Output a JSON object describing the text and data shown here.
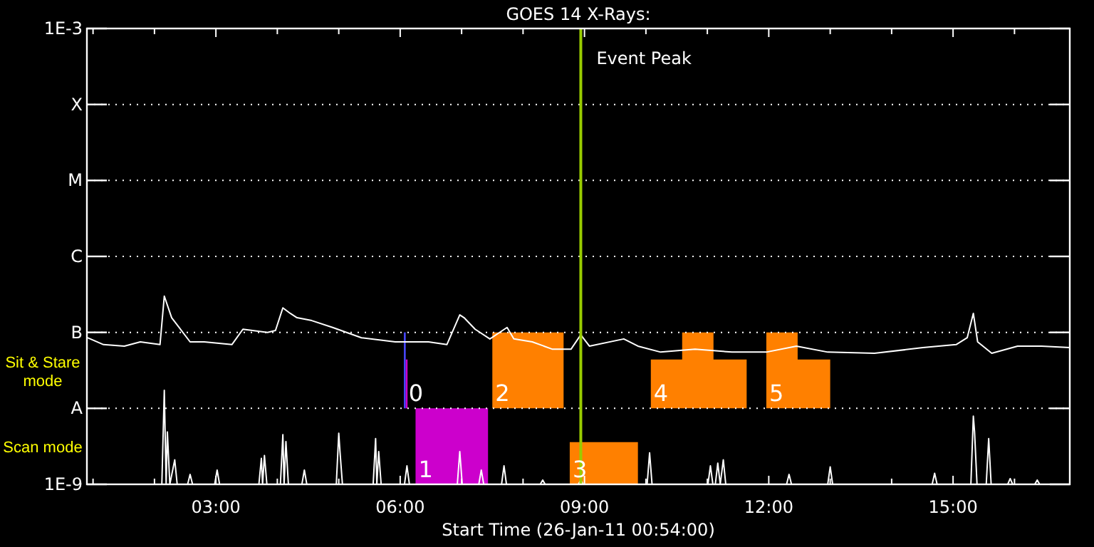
{
  "chart_data": {
    "type": "line",
    "title": "GOES 14 X-Rays:",
    "xlabel": "Start Time (26-Jan-11 00:54:00)",
    "log": "y",
    "grid": "y",
    "xlim": [
      0.9,
      16.9
    ],
    "xticks": [
      {
        "value": 1,
        "label": null
      },
      {
        "value": 2,
        "label": null
      },
      {
        "value": 3,
        "label": "03:00"
      },
      {
        "value": 4,
        "label": null
      },
      {
        "value": 5,
        "label": null
      },
      {
        "value": 6,
        "label": "06:00"
      },
      {
        "value": 7,
        "label": null
      },
      {
        "value": 8,
        "label": null
      },
      {
        "value": 9,
        "label": "09:00"
      },
      {
        "value": 10,
        "label": null
      },
      {
        "value": 11,
        "label": null
      },
      {
        "value": 12,
        "label": "12:00"
      },
      {
        "value": 13,
        "label": null
      },
      {
        "value": 14,
        "label": null
      },
      {
        "value": 15,
        "label": "15:00"
      },
      {
        "value": 16,
        "label": null
      }
    ],
    "ylim": [
      1e-09,
      0.001
    ],
    "yticks": [
      {
        "value": 1e-09,
        "label": "1E-9"
      },
      {
        "value": 1e-08,
        "label": "A"
      },
      {
        "value": 1e-07,
        "label": "B"
      },
      {
        "value": 1e-06,
        "label": "C"
      },
      {
        "value": 1e-05,
        "label": "M"
      },
      {
        "value": 0.0001,
        "label": "X"
      },
      {
        "value": 0.001,
        "label": "1E-3"
      }
    ],
    "series": [
      {
        "type": "area",
        "color": "#4848ff",
        "x": [
          6.06,
          6.09
        ],
        "values": [
          null,
          null
        ],
        "lower": [
          1e-08,
          1e-08
        ],
        "upper": [
          1e-07,
          1e-07
        ]
      },
      {
        "type": "area",
        "color": "#cc00cc",
        "x": [
          6.09,
          6.12
        ],
        "values": [
          null,
          null
        ],
        "lower": [
          1e-08,
          1e-08
        ],
        "upper": [
          4.4e-08,
          4.4e-08
        ]
      },
      {
        "type": "area",
        "color": "#cc00cc",
        "x": [
          6.25,
          7.43
        ],
        "values": [
          null,
          null
        ],
        "lower": [
          1e-09,
          1e-09
        ],
        "upper": [
          1e-08,
          1e-08
        ]
      },
      {
        "type": "area",
        "color": "#ff8000",
        "x": [
          7.5,
          8.66
        ],
        "values": [
          null,
          null
        ],
        "lower": [
          1e-08,
          1e-08
        ],
        "upper": [
          1e-07,
          1e-07
        ]
      },
      {
        "type": "area",
        "color": "#ff8000",
        "x": [
          8.76,
          9.87
        ],
        "values": [
          null,
          null
        ],
        "lower": [
          1e-09,
          1e-09
        ],
        "upper": [
          3.6e-09,
          3.6e-09
        ]
      },
      {
        "type": "area",
        "color": "#ff8000",
        "x": [
          10.08,
          10.59,
          10.59,
          11.1,
          11.1,
          11.64
        ],
        "values": [
          null,
          null,
          null,
          null,
          null,
          null
        ],
        "lower": [
          1e-08,
          1e-08,
          1e-08,
          1e-08,
          1e-08,
          1e-08
        ],
        "upper": [
          4.4e-08,
          4.4e-08,
          1e-07,
          1e-07,
          4.4e-08,
          4.4e-08
        ]
      },
      {
        "type": "area",
        "color": "#ff8000",
        "x": [
          11.96,
          12.47,
          12.47,
          13.0
        ],
        "values": [
          null,
          null,
          null,
          null
        ],
        "lower": [
          1e-08,
          1e-08,
          1e-08,
          1e-08
        ],
        "upper": [
          1e-07,
          1e-07,
          4.4e-08,
          4.4e-08
        ]
      },
      {
        "color": "#ffffff",
        "x": [
          0.91,
          1.17,
          1.51,
          1.77,
          2.09,
          2.16,
          2.28,
          2.58,
          2.81,
          3.26,
          3.44,
          3.84,
          3.97,
          4.09,
          4.21,
          4.32,
          4.56,
          4.9,
          5.37,
          5.92,
          6.46,
          6.76,
          6.97,
          7.04,
          7.22,
          7.46,
          7.74,
          7.85,
          8.15,
          8.48,
          8.78,
          8.94,
          9.08,
          9.64,
          9.87,
          10.24,
          10.8,
          11.4,
          11.96,
          12.45,
          12.96,
          13.72,
          14.51,
          15.05,
          15.23,
          15.33,
          15.4,
          15.63,
          16.05,
          16.44,
          16.9
        ],
        "values": [
          8.5e-08,
          6.9e-08,
          6.6e-08,
          7.5e-08,
          6.9e-08,
          3e-07,
          1.56e-07,
          7.5e-08,
          7.5e-08,
          6.9e-08,
          1.1e-07,
          1e-07,
          1.06e-07,
          2.1e-07,
          1.78e-07,
          1.56e-07,
          1.43e-07,
          1.16e-07,
          8.5e-08,
          7.5e-08,
          7.5e-08,
          6.9e-08,
          1.7e-07,
          1.56e-07,
          1.1e-07,
          8.2e-08,
          1.16e-07,
          8.2e-08,
          7.5e-08,
          6e-08,
          6e-08,
          9.3e-08,
          6.6e-08,
          8.2e-08,
          6.6e-08,
          5.5e-08,
          6e-08,
          5.5e-08,
          5.5e-08,
          6.6e-08,
          5.5e-08,
          5.3e-08,
          6.3e-08,
          6.9e-08,
          8.5e-08,
          1.78e-07,
          7.5e-08,
          5.3e-08,
          6.6e-08,
          6.6e-08,
          6.3e-08
        ]
      },
      {
        "color": "#ffffff",
        "x": [
          0.9,
          2.12,
          2.16,
          2.19,
          2.21,
          2.25,
          2.33,
          2.37,
          2.54,
          2.58,
          2.62,
          2.98,
          3.02,
          3.06,
          3.7,
          3.74,
          3.76,
          3.79,
          3.83,
          4.05,
          4.09,
          4.11,
          4.14,
          4.18,
          4.4,
          4.44,
          4.48,
          4.96,
          5.0,
          5.02,
          5.06,
          5.56,
          5.6,
          5.62,
          5.65,
          5.69,
          6.07,
          6.11,
          6.15,
          6.93,
          6.97,
          7.01,
          7.28,
          7.32,
          7.36,
          7.65,
          7.69,
          7.73,
          8.28,
          8.32,
          8.36,
          8.9,
          8.94,
          8.98,
          10.02,
          10.06,
          10.1,
          11.01,
          11.05,
          11.09,
          11.13,
          11.17,
          11.21,
          11.26,
          11.3,
          12.29,
          12.33,
          12.37,
          12.96,
          13.0,
          13.04,
          14.66,
          14.7,
          14.74,
          15.29,
          15.33,
          15.35,
          15.39,
          15.54,
          15.58,
          15.62,
          15.89,
          15.93,
          15.97,
          16.33,
          16.37,
          16.41,
          16.9
        ],
        "values": [
          1e-09,
          1e-09,
          1.73e-08,
          1e-09,
          4.9e-09,
          1e-09,
          2.1e-09,
          1e-09,
          1e-09,
          1.35e-09,
          1e-09,
          1e-09,
          1.54e-09,
          1e-09,
          1e-09,
          2.2e-09,
          1e-09,
          2.4e-09,
          1e-09,
          1e-09,
          4.5e-09,
          1e-09,
          3.65e-09,
          1e-09,
          1e-09,
          1.54e-09,
          1e-09,
          1e-09,
          4.7e-09,
          2.7e-09,
          1e-09,
          1e-09,
          4e-09,
          1e-09,
          2.7e-09,
          1e-09,
          1e-09,
          1.75e-09,
          1e-09,
          1e-09,
          2.7e-09,
          1e-09,
          1e-09,
          1.54e-09,
          1e-09,
          1e-09,
          1.75e-09,
          1e-09,
          1e-09,
          1.14e-09,
          1e-09,
          1e-09,
          1.14e-09,
          1e-09,
          1e-09,
          2.6e-09,
          1e-09,
          1e-09,
          1.75e-09,
          1e-09,
          1e-09,
          1.9e-09,
          1e-09,
          2.1e-09,
          1e-09,
          1e-09,
          1.35e-09,
          1e-09,
          1e-09,
          1.7e-09,
          1e-09,
          1e-09,
          1.4e-09,
          1e-09,
          1e-09,
          7.9e-09,
          4.9e-09,
          1e-09,
          1e-09,
          4e-09,
          1e-09,
          1e-09,
          1.19e-09,
          1e-09,
          1e-09,
          1.14e-09,
          1e-09,
          1e-09
        ]
      }
    ],
    "ref_lines": [
      {
        "axis": "x",
        "value": 8.94,
        "label": "Event Peak",
        "color": "#99cc00"
      }
    ],
    "annotations": [
      "Sit & Stare mode",
      "Scan mode",
      {
        "text": "0",
        "x": 6.09,
        "y": 1e-08
      },
      {
        "text": "1",
        "x": 6.25,
        "y": 1e-09
      },
      {
        "text": "2",
        "x": 7.5,
        "y": 1e-08
      },
      {
        "text": "3",
        "x": 8.76,
        "y": 1e-09
      },
      {
        "text": "4",
        "x": 10.08,
        "y": 1e-08
      },
      {
        "text": "5",
        "x": 11.96,
        "y": 1e-08
      }
    ]
  }
}
